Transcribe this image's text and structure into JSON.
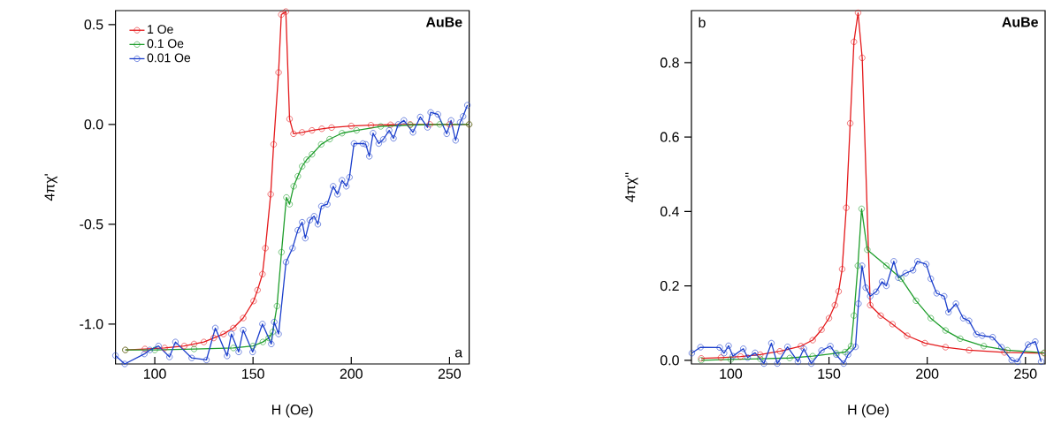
{
  "chart_data": [
    {
      "type": "line",
      "marker": "circle",
      "legend": "top left",
      "xlabel": "H (Oe)",
      "ylabel": "4πχ'",
      "xlim": [
        80,
        260
      ],
      "ylim": [
        -1.2,
        0.57
      ],
      "xticks": [
        100,
        150,
        200,
        250
      ],
      "yticks": [
        {
          "value": -1.0,
          "label": "-1.0"
        },
        {
          "value": -0.5,
          "label": "-0.5"
        },
        {
          "value": 0.0,
          "label": "0.0"
        },
        {
          "value": 0.5,
          "label": "0.5"
        }
      ],
      "annotations": [
        "AuBe",
        "a"
      ],
      "series": [
        {
          "name": "1 Oe",
          "color": "#e41a1c",
          "x": [
            85,
            95,
            105,
            115,
            120,
            125,
            130,
            135,
            140,
            145,
            150.3,
            152.3,
            154.8,
            156.3,
            159,
            160.5,
            163,
            164.4,
            166.7,
            168.6,
            170.6,
            175,
            180,
            185,
            190,
            200,
            210,
            220,
            230,
            240,
            250,
            260
          ],
          "values": [
            -1.13,
            -1.125,
            -1.12,
            -1.11,
            -1.1,
            -1.09,
            -1.07,
            -1.05,
            -1.02,
            -0.97,
            -0.885,
            -0.83,
            -0.75,
            -0.62,
            -0.35,
            -0.1,
            0.26,
            0.55,
            0.565,
            0.027,
            -0.047,
            -0.04,
            -0.03,
            -0.022,
            -0.016,
            -0.008,
            -0.004,
            -0.002,
            0,
            0,
            0,
            0
          ]
        },
        {
          "name": "0.1 Oe",
          "color": "#1f9e2c",
          "x": [
            85,
            100,
            120,
            140,
            150,
            155,
            158,
            160,
            162.2,
            164.5,
            167,
            168.6,
            170.7,
            172.8,
            175,
            177.3,
            180,
            184.7,
            189,
            195.3,
            202.7,
            215,
            230,
            245,
            260
          ],
          "values": [
            -1.13,
            -1.13,
            -1.125,
            -1.12,
            -1.11,
            -1.09,
            -1.07,
            -1.04,
            -0.91,
            -0.64,
            -0.366,
            -0.4,
            -0.31,
            -0.26,
            -0.21,
            -0.177,
            -0.15,
            -0.1,
            -0.074,
            -0.044,
            -0.03,
            -0.01,
            -0.003,
            0,
            0
          ]
        },
        {
          "name": "0.01 Oe",
          "color": "#1c3fcc",
          "x": [
            80,
            84.7,
            94.7,
            97.5,
            101.9,
            107.5,
            110.5,
            118.8,
            126.3,
            130.8,
            136.8,
            139,
            142.7,
            145,
            149.8,
            154.8,
            159.3,
            160.8,
            163,
            166.8,
            170.1,
            172.8,
            175,
            176.6,
            178.9,
            181.1,
            183,
            184.8,
            187.8,
            190.8,
            193,
            195.3,
            197.5,
            199.1,
            201.4,
            205.9,
            207.4,
            209.2,
            211.1,
            214,
            216.3,
            219.3,
            221.5,
            223.9,
            226.8,
            231.4,
            235.1,
            238.8,
            240.4,
            244.1,
            248.6,
            250.8,
            253.1,
            255.4,
            256.9,
            259.1
          ],
          "values": [
            -1.158,
            -1.2,
            -1.15,
            -1.13,
            -1.11,
            -1.165,
            -1.09,
            -1.17,
            -1.18,
            -1.02,
            -1.16,
            -1.05,
            -1.14,
            -1.03,
            -1.14,
            -1.0,
            -1.1,
            -0.99,
            -1.05,
            -0.69,
            -0.62,
            -0.53,
            -0.49,
            -0.57,
            -0.48,
            -0.46,
            -0.5,
            -0.41,
            -0.4,
            -0.31,
            -0.35,
            -0.28,
            -0.31,
            -0.265,
            -0.096,
            -0.096,
            -0.1,
            -0.16,
            -0.044,
            -0.096,
            -0.075,
            -0.03,
            -0.07,
            0,
            0.02,
            -0.04,
            0.037,
            -0.015,
            0.06,
            0.05,
            -0.047,
            0.02,
            -0.08,
            0.01,
            0.04,
            0.096
          ]
        }
      ]
    },
    {
      "type": "line",
      "marker": "circle",
      "xlabel": "H (Oe)",
      "ylabel": "4πχ''",
      "xlim": [
        80,
        260
      ],
      "ylim": [
        -0.01,
        0.94
      ],
      "xticks": [
        100,
        150,
        200,
        250
      ],
      "yticks": [
        {
          "value": 0.0,
          "label": "0.0"
        },
        {
          "value": 0.2,
          "label": "0.2"
        },
        {
          "value": 0.4,
          "label": "0.4"
        },
        {
          "value": 0.6,
          "label": "0.6"
        },
        {
          "value": 0.8,
          "label": "0.8"
        }
      ],
      "annotations": [
        "AuBe",
        "b"
      ],
      "series": [
        {
          "color": "#e41a1c",
          "x": [
            85,
            95,
            105,
            115,
            125,
            135.7,
            141.7,
            146.2,
            150,
            153,
            154.9,
            156.7,
            158.8,
            160.8,
            162.7,
            164.8,
            166.9,
            171,
            176.3,
            182.3,
            189.8,
            198.8,
            209.3,
            221.3,
            239.3,
            259.5
          ],
          "values": [
            0.005,
            0.007,
            0.01,
            0.015,
            0.024,
            0.038,
            0.054,
            0.082,
            0.113,
            0.148,
            0.185,
            0.245,
            0.41,
            0.637,
            0.856,
            0.934,
            0.813,
            0.148,
            0.12,
            0.097,
            0.066,
            0.046,
            0.035,
            0.027,
            0.021,
            0.019
          ]
        },
        {
          "color": "#1f9e2c",
          "x": [
            85,
            100,
            115,
            130,
            141.7,
            153.7,
            158.2,
            161.2,
            162.7,
            164.7,
            166.6,
            169.5,
            179.2,
            186.8,
            194.3,
            201.8,
            209.3,
            216.8,
            228.8,
            240.8,
            259.5
          ],
          "values": [
            0.0,
            0.002,
            0.004,
            0.006,
            0.011,
            0.019,
            0.022,
            0.038,
            0.12,
            0.254,
            0.407,
            0.297,
            0.254,
            0.219,
            0.16,
            0.113,
            0.08,
            0.058,
            0.038,
            0.027,
            0.02
          ]
        },
        {
          "color": "#1c3fcc",
          "x": [
            80.2,
            84.6,
            94.4,
            96.6,
            98.9,
            101.1,
            106.4,
            108.6,
            112.4,
            116.9,
            120.7,
            123.7,
            128.9,
            134.2,
            137.2,
            141,
            146.2,
            150.7,
            153.7,
            157.5,
            159.7,
            163.5,
            165,
            166.8,
            168.7,
            171,
            174,
            177,
            179.2,
            183,
            185.3,
            189,
            192.8,
            195,
            199.5,
            201.8,
            204.8,
            208.6,
            210.8,
            214.6,
            218.3,
            221.3,
            225,
            228,
            233.3,
            237.8,
            243,
            246,
            251.3,
            255,
            258
          ],
          "values": [
            0.019,
            0.035,
            0.034,
            0.019,
            0.039,
            0.011,
            0.031,
            0.007,
            0.02,
            -0.009,
            0.046,
            -0.009,
            0.036,
            -0.004,
            0.031,
            -0.009,
            0.026,
            0.038,
            0.015,
            -0.009,
            0.015,
            0.036,
            0.152,
            0.254,
            0.195,
            0.172,
            0.184,
            0.211,
            0.2,
            0.266,
            0.222,
            0.234,
            0.242,
            0.266,
            0.258,
            0.219,
            0.18,
            0.172,
            0.129,
            0.152,
            0.113,
            0.106,
            0.07,
            0.066,
            0.062,
            0.035,
            0.0,
            -0.004,
            0.042,
            0.05,
            -0.004
          ]
        }
      ]
    }
  ]
}
